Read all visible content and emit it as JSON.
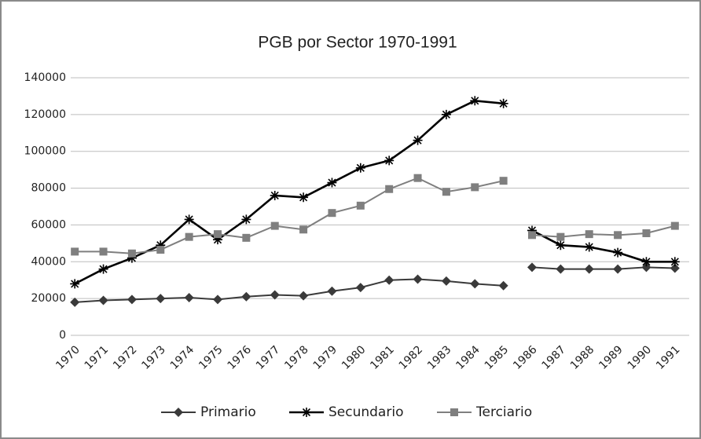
{
  "chart_data": {
    "type": "line",
    "title": "PGB por Sector 1970-1991",
    "categories": [
      "1970",
      "1971",
      "1972",
      "1973",
      "1974",
      "1975",
      "1976",
      "1977",
      "1978",
      "1979",
      "1980",
      "1981",
      "1982",
      "1983",
      "1984",
      "1985",
      "1986",
      "1987",
      "1988",
      "1989",
      "1990",
      "1991"
    ],
    "breaks_after": [
      "1985"
    ],
    "series": [
      {
        "name": "Primario",
        "color": "#3a3a3a",
        "marker": "diamond",
        "values": [
          18000,
          19000,
          19500,
          20000,
          20500,
          19500,
          21000,
          22000,
          21500,
          24000,
          26000,
          30000,
          30500,
          29500,
          28000,
          27000,
          37000,
          36000,
          36000,
          36000,
          37000,
          36500
        ]
      },
      {
        "name": "Secundario",
        "color": "#000000",
        "marker": "asterisk",
        "values": [
          28000,
          36000,
          42000,
          49000,
          63000,
          52000,
          63000,
          76000,
          75000,
          83000,
          91000,
          95000,
          106000,
          120000,
          127500,
          126000,
          57000,
          49000,
          48000,
          45000,
          40000,
          40000
        ]
      },
      {
        "name": "Terciario",
        "color": "#7f7f7f",
        "marker": "square",
        "values": [
          45500,
          45500,
          44500,
          46500,
          53500,
          55000,
          53000,
          59500,
          57500,
          66500,
          70500,
          79500,
          85500,
          78000,
          80500,
          84000,
          54500,
          53500,
          55000,
          54500,
          55500,
          59500
        ]
      }
    ],
    "ylim": [
      0,
      140000
    ],
    "yticks": [
      0,
      20000,
      40000,
      60000,
      80000,
      100000,
      120000,
      140000
    ],
    "grid": true,
    "legend": "bottom"
  }
}
